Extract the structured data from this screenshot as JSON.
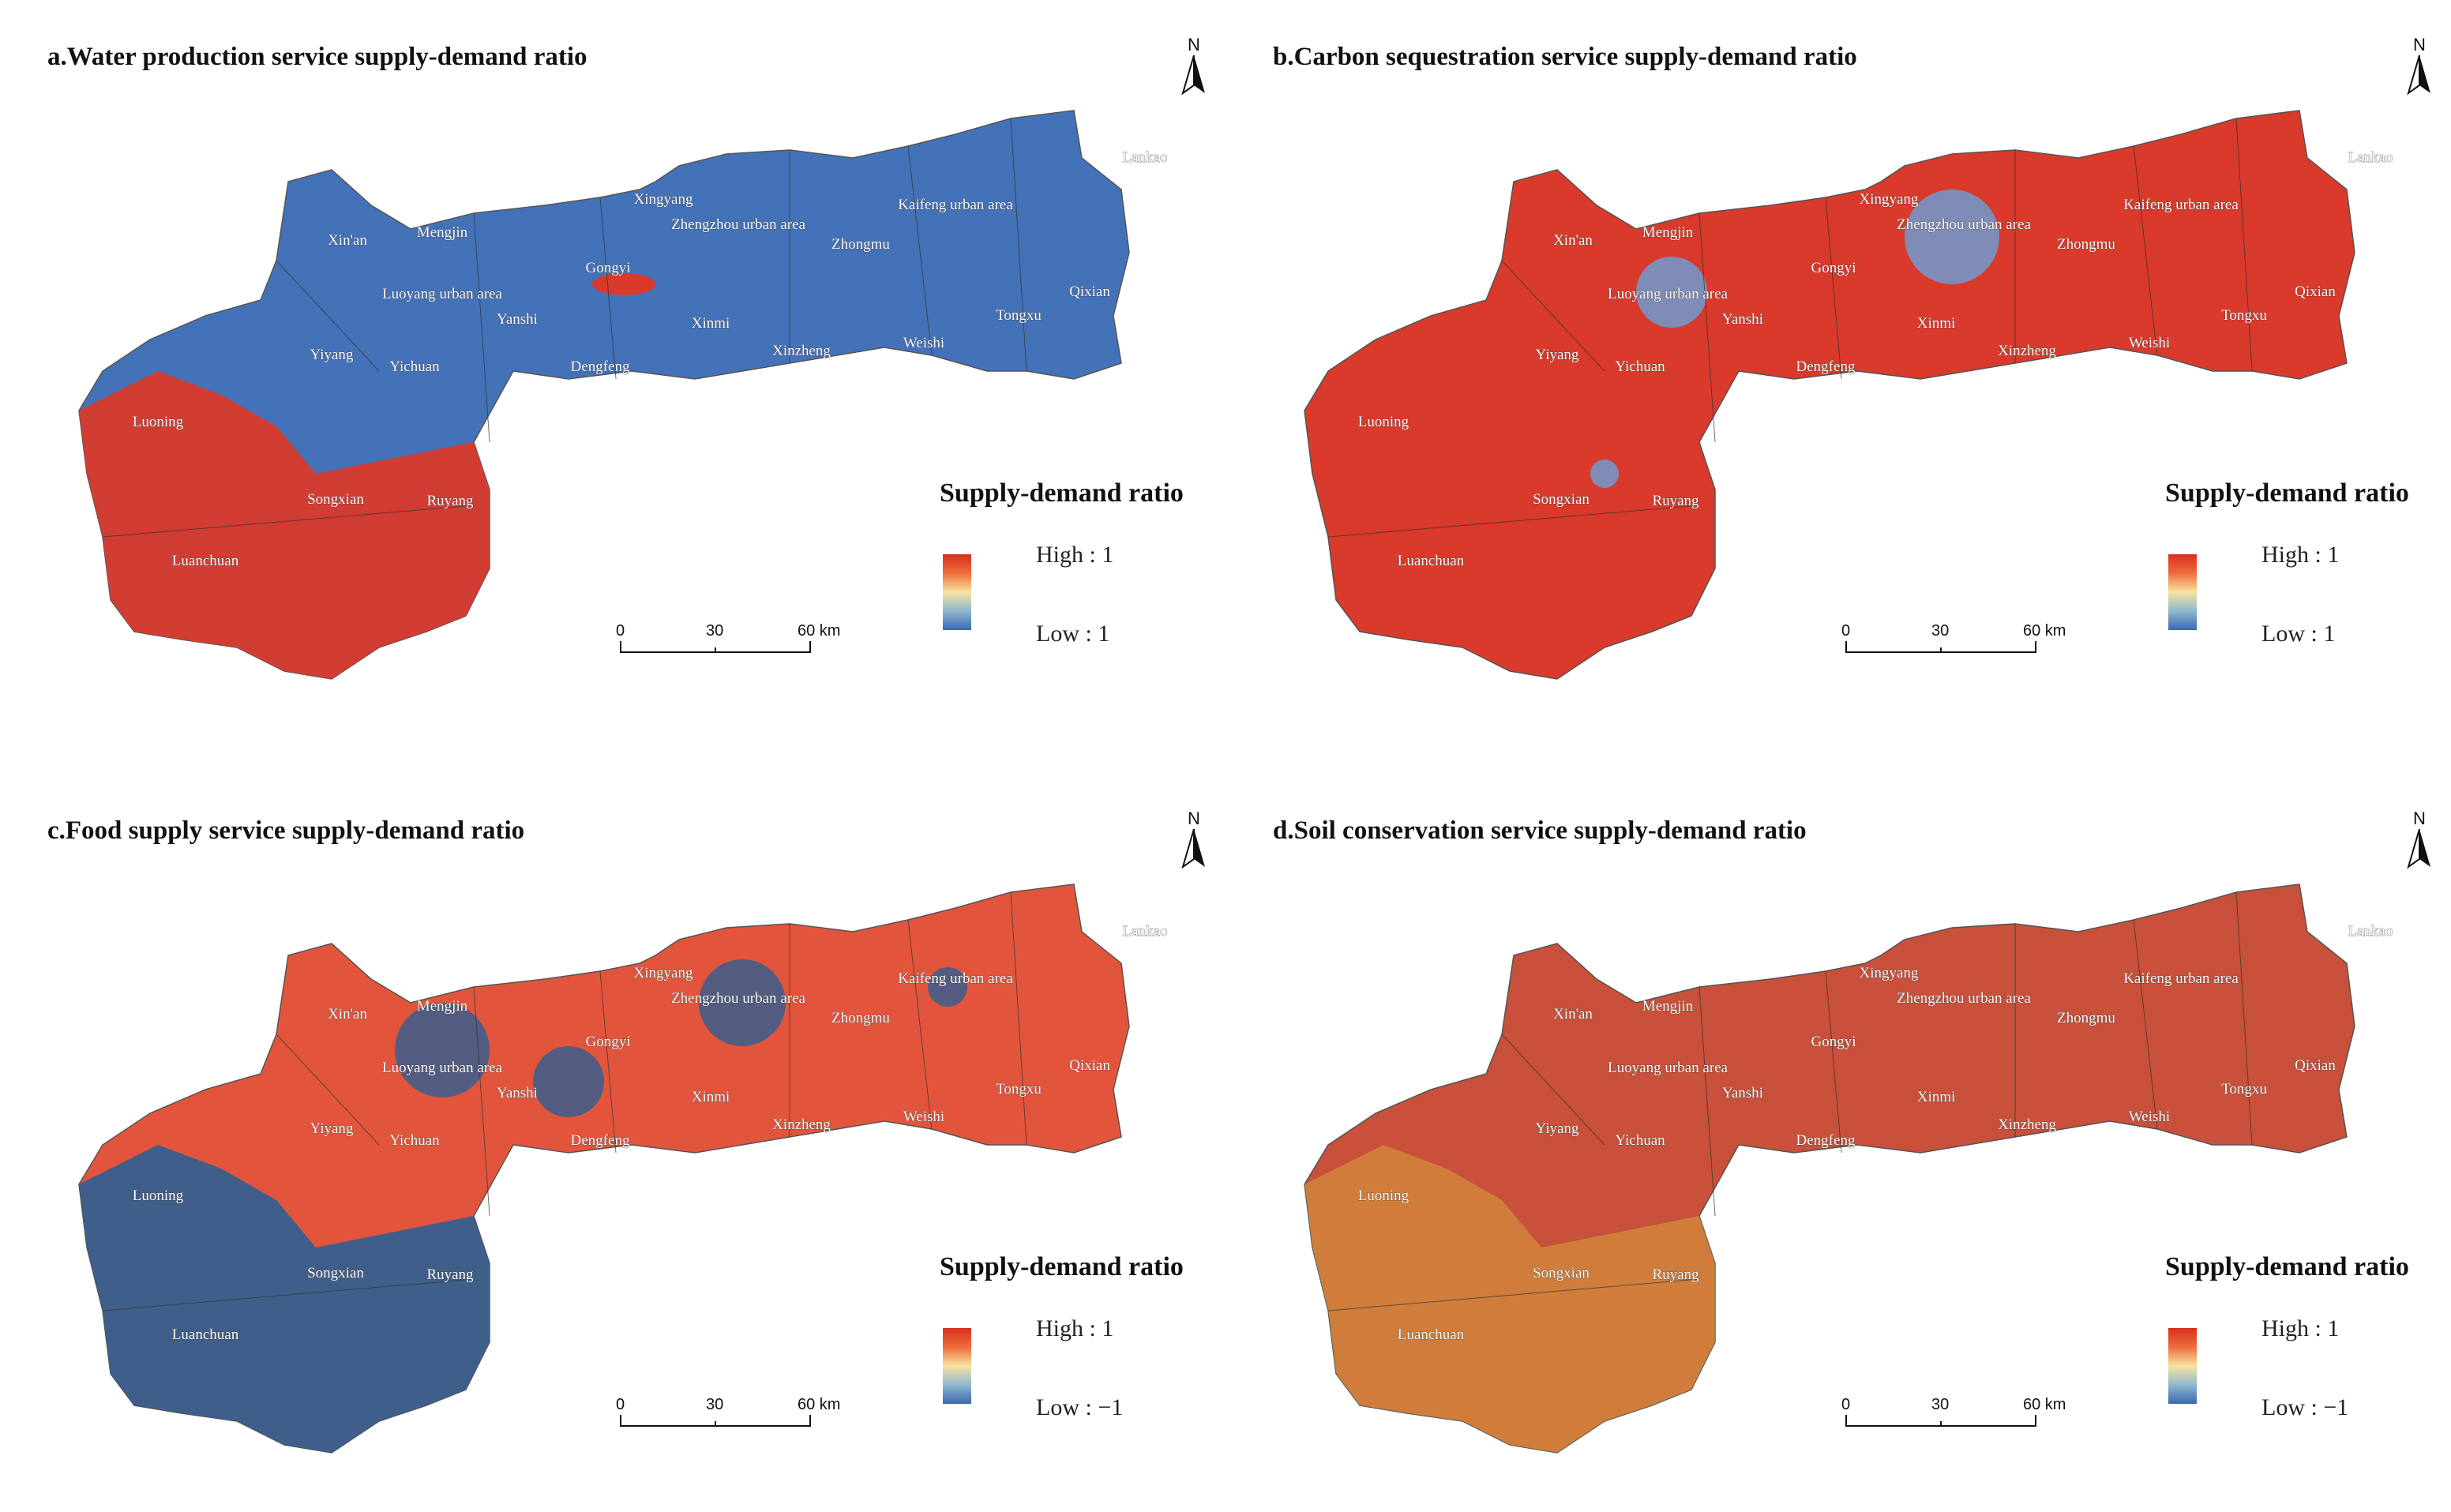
{
  "panels": [
    {
      "title": "a.Water production service supply-demand ratio",
      "legend_title": "Supply-demand ratio",
      "legend_high": "High : 1",
      "legend_low": "Low :   1",
      "base_color": "#4472b8",
      "overlay_color": "#d93a2b",
      "overlay_pattern": "south-west red",
      "place_labels": [
        "Xin'an",
        "Mengjin",
        "Luoyang urban area",
        "Yanshi",
        "Yiyang",
        "Yichuan",
        "Luoning",
        "Songxian",
        "Ruyang",
        "Luanchuan",
        "Gongyi",
        "Dengfeng",
        "Xinmi",
        "Xinzheng",
        "Xingyang",
        "Zhengzhou urban area",
        "Zhongmu",
        "Kaifeng urban area",
        "Weishi",
        "Tongxu",
        "Qixian",
        "Lankao"
      ]
    },
    {
      "title": "b.Carbon sequestration service supply-demand ratio",
      "legend_title": "Supply-demand ratio",
      "legend_high": "High : 1",
      "legend_low": "Low :   1",
      "base_color": "#d93a2b",
      "overlay_color": "#6f9bd0",
      "overlay_pattern": "urban blue spots",
      "place_labels": [
        "Xin'an",
        "Mengjin",
        "Luoyang urban area",
        "Yanshi",
        "Yiyang",
        "Yichuan",
        "Luoning",
        "Songxian",
        "Ruyang",
        "Luanchuan",
        "Gongyi",
        "Dengfeng",
        "Xinmi",
        "Xinzheng",
        "Xingyang",
        "Zhengzhou urban area",
        "Zhongmu",
        "Kaifeng urban area",
        "Weishi",
        "Tongxu",
        "Qixian",
        "Lankao"
      ]
    },
    {
      "title": "c.Food supply service supply-demand ratio",
      "legend_title": "Supply-demand ratio",
      "legend_high": "High : 1",
      "legend_low": "Low : −1",
      "base_color": "#e2553c",
      "overlay_color": "#2f5f92",
      "overlay_pattern": "mixed",
      "place_labels": [
        "Xin'an",
        "Mengjin",
        "Luoyang urban area",
        "Yanshi",
        "Yiyang",
        "Yichuan",
        "Luoning",
        "Songxian",
        "Ruyang",
        "Luanchuan",
        "Gongyi",
        "Dengfeng",
        "Xinmi",
        "Xinzheng",
        "Xingyang",
        "Zhengzhou urban area",
        "Zhongmu",
        "Kaifeng urban area",
        "Weishi",
        "Tongxu",
        "Qixian",
        "Lankao"
      ]
    },
    {
      "title": "d.Soil conservation service supply-demand ratio",
      "legend_title": "Supply-demand ratio",
      "legend_high": "High : 1",
      "legend_low": "Low : −1",
      "base_color": "#c9503a",
      "overlay_color": "#d6a23c",
      "overlay_pattern": "south-west yellow speckle",
      "place_labels": [
        "Xin'an",
        "Mengjin",
        "Luoyang urban area",
        "Yanshi",
        "Yiyang",
        "Yichuan",
        "Luoning",
        "Songxian",
        "Ruyang",
        "Luanchuan",
        "Gongyi",
        "Dengfeng",
        "Xinmi",
        "Xinzheng",
        "Xingyang",
        "Zhengzhou urban area",
        "Zhongmu",
        "Kaifeng urban area",
        "Weishi",
        "Tongxu",
        "Qixian",
        "Lankao"
      ]
    }
  ],
  "north_label": "N",
  "scale_labels": [
    "0",
    "30",
    "60 km"
  ]
}
